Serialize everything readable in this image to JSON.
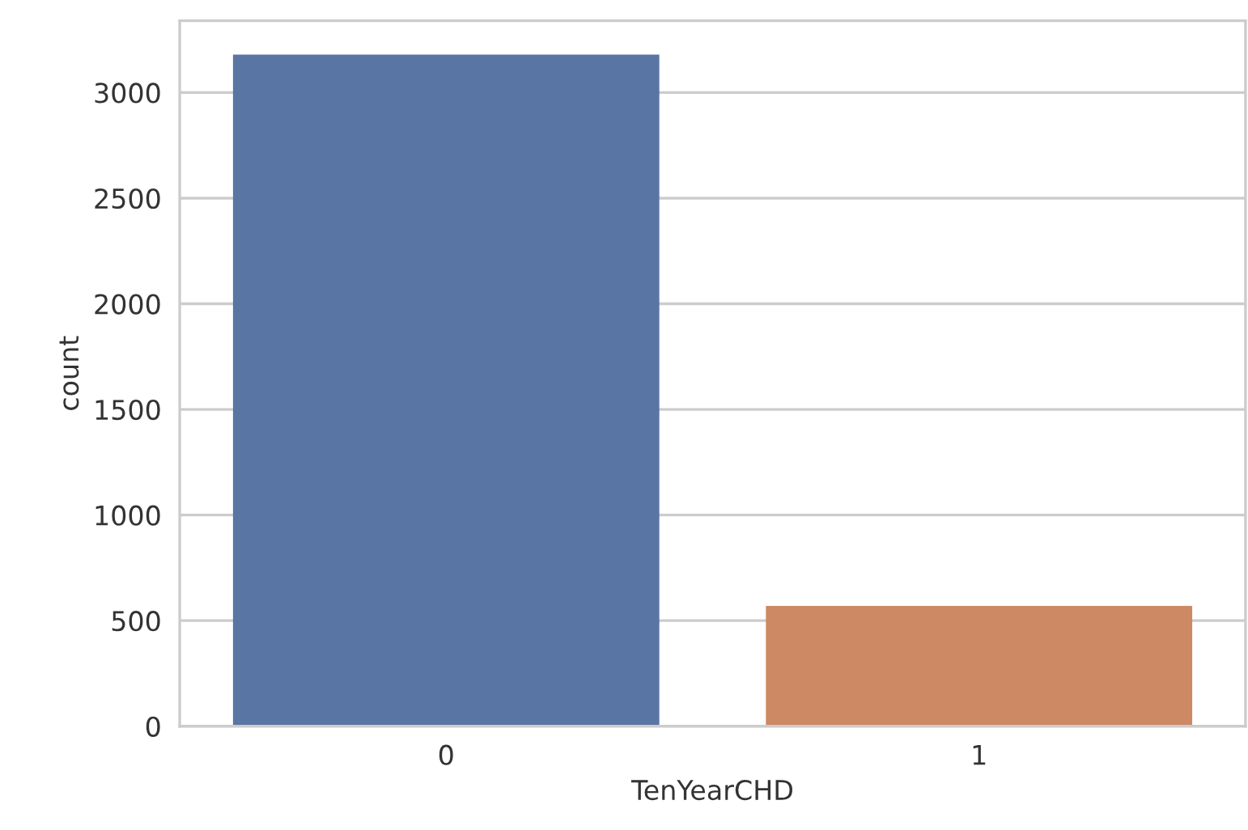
{
  "chart_data": {
    "type": "bar",
    "xlabel": "TenYearCHD",
    "ylabel": "count",
    "categories": [
      "0",
      "1"
    ],
    "values": [
      3180,
      570
    ],
    "colors": [
      "#5975a4",
      "#cc8963"
    ],
    "ylim": [
      0,
      3340
    ],
    "yticks": [
      0,
      500,
      1000,
      1500,
      2000,
      2500,
      3000
    ],
    "grid": "y"
  }
}
